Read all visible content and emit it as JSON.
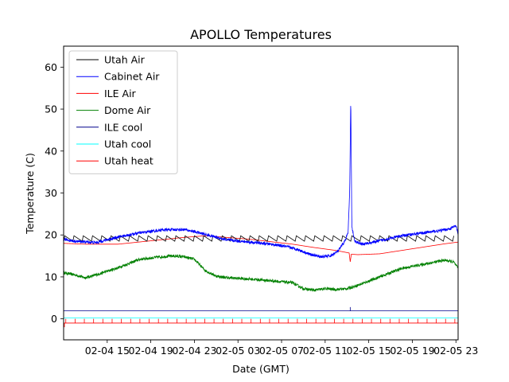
{
  "chart_data": {
    "type": "line",
    "title": "APOLLO Temperatures",
    "xlabel": "Date (GMT)",
    "ylabel": "Temperature (C)",
    "xlim": [
      11,
      47.2
    ],
    "ylim": [
      -5,
      65
    ],
    "yticks": [
      0,
      10,
      20,
      30,
      40,
      50,
      60
    ],
    "xticks": [
      {
        "value": 15,
        "label": "02-04 15"
      },
      {
        "value": 19,
        "label": "02-04 19"
      },
      {
        "value": 23,
        "label": "02-04 23"
      },
      {
        "value": 27,
        "label": "02-05 03"
      },
      {
        "value": 31,
        "label": "02-05 07"
      },
      {
        "value": 35,
        "label": "02-05 11"
      },
      {
        "value": 39,
        "label": "02-05 15"
      },
      {
        "value": 43,
        "label": "02-05 19"
      },
      {
        "value": 47,
        "label": "02-05 23"
      }
    ],
    "legend_position": "top-left",
    "series": [
      {
        "name": "Utah Air",
        "color": "#000000",
        "style": "sawtooth",
        "sawtooth_low": 18.5,
        "sawtooth_high": 19.8,
        "period_hours": 0.85,
        "x": [
          11,
          47.2
        ],
        "y": [
          19.1,
          19.1
        ]
      },
      {
        "name": "Cabinet Air",
        "color": "#0000ff",
        "style": "noisy",
        "x": [
          11,
          12,
          14,
          16,
          18,
          20,
          22,
          23,
          24.5,
          26,
          28,
          30,
          31.5,
          32.5,
          33.5,
          34.5,
          35.5,
          36.2,
          36.8,
          37.1,
          37.25,
          37.35,
          37.45,
          37.7,
          38.5,
          40,
          42,
          44,
          45.5,
          46.5,
          47,
          47.2
        ],
        "y": [
          19,
          18.5,
          18.2,
          19.5,
          20.5,
          21.2,
          21.3,
          20.8,
          19.8,
          18.8,
          18.3,
          17.8,
          17.2,
          16.5,
          15.5,
          14.8,
          15,
          16.2,
          18.5,
          20.5,
          30,
          52.8,
          22,
          18.5,
          17.8,
          18.6,
          19.8,
          20.5,
          21,
          21.5,
          22.2,
          20
        ]
      },
      {
        "name": "ILE Air",
        "color": "#ff0000",
        "style": "smooth",
        "x": [
          11,
          13,
          16,
          19,
          22,
          24,
          26,
          28,
          30,
          32,
          34,
          36,
          37.2,
          37.3,
          37.4,
          38,
          40,
          42,
          44,
          46,
          47.2
        ],
        "y": [
          18,
          17.8,
          17.8,
          18.6,
          19.4,
          19.8,
          19.4,
          19.0,
          18.4,
          17.8,
          17.0,
          16.3,
          15.7,
          13.6,
          15.4,
          15.3,
          15.5,
          16.3,
          17.1,
          17.9,
          18.3
        ]
      },
      {
        "name": "Dome Air",
        "color": "#008000",
        "style": "noisy",
        "x": [
          11,
          12,
          13,
          14,
          16,
          18,
          20,
          21,
          22,
          23,
          24,
          25,
          26,
          28,
          30,
          32,
          33,
          34,
          35,
          36,
          37,
          38,
          40,
          42,
          44,
          46,
          46.8,
          47.2
        ],
        "y": [
          11,
          10.5,
          9.8,
          10.5,
          12.2,
          14.2,
          14.8,
          15,
          14.8,
          14.2,
          11.5,
          10.2,
          9.8,
          9.5,
          9.1,
          8.6,
          7.2,
          6.8,
          7.2,
          7,
          7.2,
          8,
          10,
          12,
          13,
          14,
          13.5,
          12
        ]
      },
      {
        "name": "ILE cool",
        "color": "#00008b",
        "style": "flat",
        "spike_x": 37.3,
        "spike_y": 2.8,
        "x": [
          11,
          47.2
        ],
        "y": [
          1.9,
          1.9
        ]
      },
      {
        "name": "Utah cool",
        "color": "#00ffff",
        "style": "flat",
        "x": [
          11,
          47.2
        ],
        "y": [
          0.2,
          0.2
        ]
      },
      {
        "name": "Utah heat",
        "color": "#ff0000",
        "style": "pulses",
        "base": -1,
        "pulse_top": 0,
        "period_hours": 0.85,
        "x": [
          11,
          47.2
        ],
        "y": [
          -1,
          -1
        ]
      }
    ]
  }
}
